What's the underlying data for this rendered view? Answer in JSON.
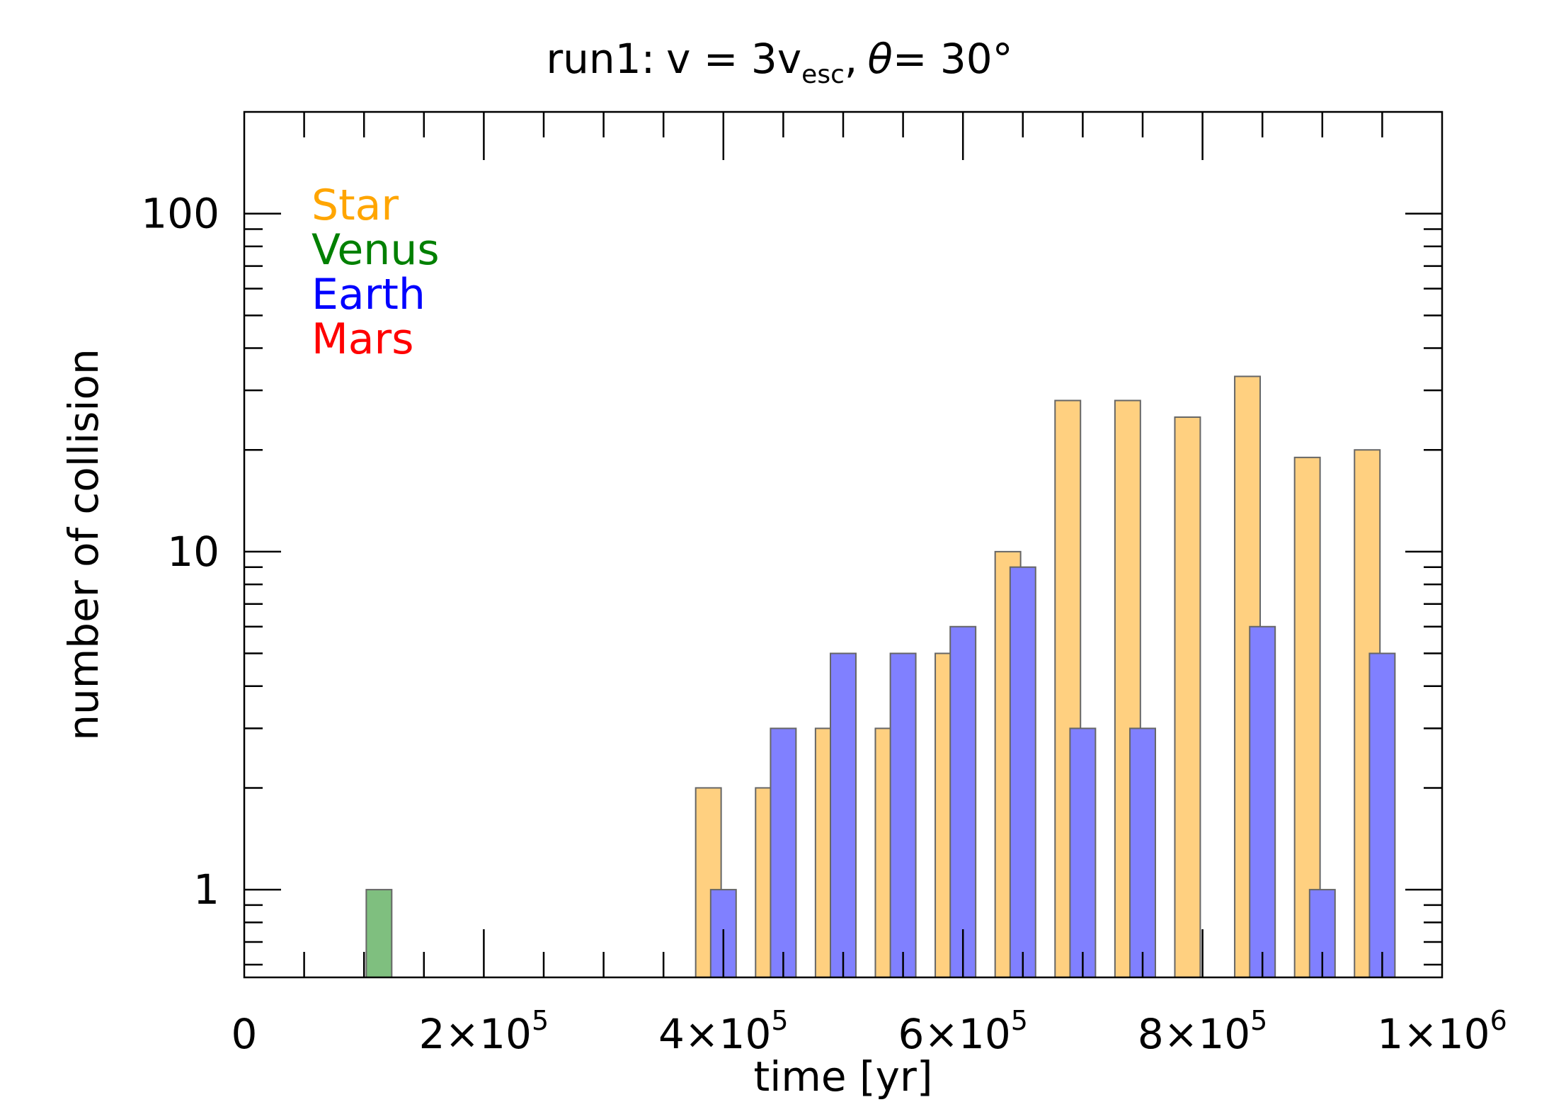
{
  "chart_data": {
    "type": "bar",
    "title": {
      "run": "run1:",
      "v_main": "v = 3v",
      "v_sub": "esc",
      "comma": ",",
      "theta": "θ",
      "theta_rest": "= 30°"
    },
    "xlabel": "time [yr]",
    "ylabel": "number of collision",
    "xlim": [
      0,
      1000000
    ],
    "ylim": [
      0.55,
      200
    ],
    "yscale": "log",
    "grid": false,
    "x_ticks": [
      {
        "value": 0,
        "mant": "0",
        "exp": ""
      },
      {
        "value": 200000,
        "mant": "2×10",
        "exp": "5"
      },
      {
        "value": 400000,
        "mant": "4×10",
        "exp": "5"
      },
      {
        "value": 600000,
        "mant": "6×10",
        "exp": "5"
      },
      {
        "value": 800000,
        "mant": "8×10",
        "exp": "5"
      },
      {
        "value": 1000000,
        "mant": "1×10",
        "exp": "6"
      }
    ],
    "y_ticks": [
      {
        "value": 1,
        "label": "1"
      },
      {
        "value": 10,
        "label": "10"
      },
      {
        "value": 100,
        "label": "100"
      }
    ],
    "legend_position": "top-left",
    "series": [
      {
        "name": "Star",
        "color": "#FFA500",
        "fill": "#FFD080",
        "points": [
          {
            "x": 387500,
            "y": 2
          },
          {
            "x": 437500,
            "y": 2
          },
          {
            "x": 487500,
            "y": 3
          },
          {
            "x": 537500,
            "y": 3
          },
          {
            "x": 587500,
            "y": 5
          },
          {
            "x": 637500,
            "y": 10
          },
          {
            "x": 687500,
            "y": 28
          },
          {
            "x": 737500,
            "y": 28
          },
          {
            "x": 787500,
            "y": 25
          },
          {
            "x": 837500,
            "y": 33
          },
          {
            "x": 887500,
            "y": 19
          },
          {
            "x": 937500,
            "y": 20
          }
        ]
      },
      {
        "name": "Venus",
        "color": "#008000",
        "fill": "#7FBF7F",
        "points": [
          {
            "x": 112500,
            "y": 1
          }
        ]
      },
      {
        "name": "Earth",
        "color": "#0000FF",
        "fill": "#8080FF",
        "points": [
          {
            "x": 400000,
            "y": 1
          },
          {
            "x": 450000,
            "y": 3
          },
          {
            "x": 500000,
            "y": 5
          },
          {
            "x": 550000,
            "y": 5
          },
          {
            "x": 600000,
            "y": 6
          },
          {
            "x": 650000,
            "y": 9
          },
          {
            "x": 700000,
            "y": 3
          },
          {
            "x": 750000,
            "y": 3
          },
          {
            "x": 850000,
            "y": 6
          },
          {
            "x": 900000,
            "y": 1
          },
          {
            "x": 950000,
            "y": 5
          }
        ]
      },
      {
        "name": "Mars",
        "color": "#FF0000",
        "fill": "#FF8080",
        "points": []
      }
    ]
  }
}
